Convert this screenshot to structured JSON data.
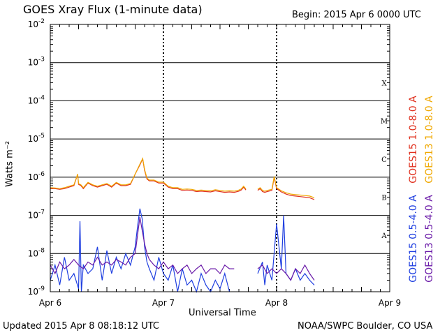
{
  "header": {
    "title": "GOES Xray Flux (1-minute data)",
    "begin": "Begin:  2015 Apr 6 0000 UTC"
  },
  "footer": {
    "updated": "Updated 2015 Apr  8 08:18:12 UTC",
    "credit": "NOAA/SWPC Boulder, CO USA"
  },
  "colors": {
    "goes15_long": "#e0301e",
    "goes13_long": "#f0a800",
    "goes15_short": "#1f3fe0",
    "goes13_short": "#6a1aa8"
  },
  "chart_data": {
    "type": "line",
    "title": "GOES Xray Flux (1-minute data)",
    "xlabel": "Universal Time",
    "ylabel": "Watts m⁻²",
    "yscale": "log",
    "ylim": [
      1e-09,
      0.01
    ],
    "xlim": [
      0,
      72
    ],
    "x_unit": "hours since 2015 Apr 6 0000 UTC",
    "x_ticks": [
      {
        "x": 0,
        "label": "Apr 6"
      },
      {
        "x": 24,
        "label": "Apr 7"
      },
      {
        "x": 48,
        "label": "Apr 8"
      },
      {
        "x": 72,
        "label": "Apr 9"
      }
    ],
    "y_ticks": [
      {
        "value": 1e-09,
        "label": "10",
        "exp": "-9"
      },
      {
        "value": 1e-08,
        "label": "10",
        "exp": "-8"
      },
      {
        "value": 1e-07,
        "label": "10",
        "exp": "-7"
      },
      {
        "value": 1e-06,
        "label": "10",
        "exp": "-6"
      },
      {
        "value": 1e-05,
        "label": "10",
        "exp": "-5"
      },
      {
        "value": 0.0001,
        "label": "10",
        "exp": "-4"
      },
      {
        "value": 0.001,
        "label": "10",
        "exp": "-3"
      },
      {
        "value": 0.01,
        "label": "10",
        "exp": "-2"
      }
    ],
    "flare_classes": [
      {
        "label": "A",
        "value": 3e-08
      },
      {
        "label": "B",
        "value": 3e-07
      },
      {
        "label": "C",
        "value": 3e-06
      },
      {
        "label": "M",
        "value": 3e-05
      },
      {
        "label": "X",
        "value": 0.0003
      }
    ],
    "grid": true,
    "legend_position": "right",
    "series": [
      {
        "name": "GOES15 1.0-8.0 A",
        "color": "#e0301e",
        "x": [
          0,
          1,
          2,
          3,
          4,
          5,
          5.8,
          6,
          6.5,
          7,
          8,
          9,
          10,
          11,
          12,
          13,
          14,
          15,
          16,
          17,
          18,
          19,
          19.6,
          20,
          20.5,
          21,
          22,
          23,
          24,
          25,
          26,
          27,
          28,
          29,
          30,
          31,
          32,
          33,
          34,
          35,
          36,
          37,
          38,
          39,
          40,
          40.5,
          41,
          41.5,
          42,
          44,
          44.5,
          45,
          45.5,
          46,
          47,
          47.5,
          48,
          49,
          50,
          51,
          52,
          53,
          54,
          55,
          56
        ],
        "y": [
          5e-07,
          5e-07,
          4.8e-07,
          5e-07,
          5.5e-07,
          6e-07,
          1.2e-06,
          6.5e-07,
          6e-07,
          5e-07,
          7e-07,
          6e-07,
          5.5e-07,
          6e-07,
          6.5e-07,
          5.5e-07,
          7e-07,
          6e-07,
          6e-07,
          6.5e-07,
          1.2e-06,
          2.1e-06,
          3e-06,
          1.5e-06,
          9e-07,
          8e-07,
          8e-07,
          7e-07,
          7e-07,
          5.5e-07,
          5e-07,
          5e-07,
          4.5e-07,
          4.6e-07,
          4.5e-07,
          4.2e-07,
          4.3e-07,
          4.2e-07,
          4.1e-07,
          4.4e-07,
          4.2e-07,
          4e-07,
          4.1e-07,
          4e-07,
          4.3e-07,
          4.6e-07,
          5.5e-07,
          4.6e-07,
          null,
          4.5e-07,
          5e-07,
          4.2e-07,
          4e-07,
          4.2e-07,
          4.5e-07,
          1e-06,
          5e-07,
          4.1e-07,
          3.6e-07,
          3.3e-07,
          3.2e-07,
          3.1e-07,
          3e-07,
          2.9e-07,
          2.6e-07
        ]
      },
      {
        "name": "GOES13 1.0-8.0 A",
        "color": "#f0a800",
        "x": [
          0,
          1,
          2,
          3,
          4,
          5,
          5.8,
          6,
          6.5,
          7,
          8,
          9,
          10,
          11,
          12,
          13,
          14,
          15,
          16,
          17,
          18,
          19,
          19.6,
          20,
          20.5,
          21,
          22,
          23,
          24,
          25,
          26,
          27,
          28,
          29,
          30,
          31,
          32,
          33,
          34,
          35,
          36,
          37,
          38,
          39,
          40,
          40.5,
          41,
          41.5,
          42,
          44,
          44.5,
          45,
          45.5,
          46,
          47,
          47.5,
          48,
          49,
          50,
          51,
          52,
          53,
          54,
          55,
          56
        ],
        "y": [
          5.3e-07,
          5.2e-07,
          5e-07,
          5.3e-07,
          5.8e-07,
          6.3e-07,
          1.2e-06,
          6.8e-07,
          6.3e-07,
          5.3e-07,
          7.3e-07,
          6.3e-07,
          5.8e-07,
          6.3e-07,
          6.8e-07,
          5.8e-07,
          7.3e-07,
          6.3e-07,
          6.3e-07,
          6.8e-07,
          1.2e-06,
          2.2e-06,
          3.1e-06,
          1.6e-06,
          9.5e-07,
          8.4e-07,
          8.4e-07,
          7.4e-07,
          7.4e-07,
          5.8e-07,
          5.3e-07,
          5.3e-07,
          4.8e-07,
          4.9e-07,
          4.8e-07,
          4.5e-07,
          4.6e-07,
          4.5e-07,
          4.4e-07,
          4.7e-07,
          4.5e-07,
          4.3e-07,
          4.4e-07,
          4.3e-07,
          4.6e-07,
          4.9e-07,
          5.8e-07,
          4.9e-07,
          null,
          4.8e-07,
          5.3e-07,
          4.5e-07,
          4.3e-07,
          4.5e-07,
          4.8e-07,
          1.05e-06,
          5.3e-07,
          4.4e-07,
          3.9e-07,
          3.6e-07,
          3.5e-07,
          3.4e-07,
          3.3e-07,
          3.2e-07,
          2.9e-07
        ]
      },
      {
        "name": "GOES15 0.5-4.0 A",
        "color": "#1f3fe0",
        "x": [
          0,
          1,
          2,
          3,
          4,
          5,
          6,
          6.3,
          6.6,
          7,
          8,
          9,
          10,
          11,
          12,
          13,
          14,
          15,
          16,
          17,
          18,
          18.5,
          19,
          19.5,
          20,
          20.5,
          21,
          22,
          23,
          24,
          25,
          26,
          27,
          28,
          29,
          30,
          31,
          32,
          33,
          34,
          35,
          36,
          37,
          38,
          39,
          40,
          41,
          42,
          43,
          44,
          45,
          45.5,
          46,
          47,
          48,
          49,
          49.5,
          50,
          51,
          52,
          53,
          54,
          55,
          56
        ],
        "y": [
          2e-09,
          5e-09,
          1.5e-09,
          8e-09,
          2e-09,
          3e-09,
          1.2e-09,
          7e-08,
          1e-09,
          5e-09,
          3e-09,
          4e-09,
          1.5e-08,
          2e-09,
          1.2e-08,
          3e-09,
          8e-09,
          4e-09,
          1e-08,
          5e-09,
          1.5e-08,
          5e-08,
          1.5e-07,
          8e-08,
          1.5e-08,
          6e-09,
          4e-09,
          2e-09,
          8e-09,
          3e-09,
          2e-09,
          5e-09,
          1e-09,
          4e-09,
          1.5e-09,
          2e-09,
          1e-09,
          3e-09,
          1.5e-09,
          1e-09,
          2e-09,
          1.2e-09,
          3e-09,
          1e-09,
          null,
          null,
          null,
          null,
          null,
          3e-09,
          6e-09,
          1.5e-09,
          5e-09,
          2e-09,
          6e-08,
          4e-09,
          1e-07,
          3e-09,
          2e-09,
          4e-09,
          2e-09,
          3e-09,
          2e-09,
          1.5e-09
        ]
      },
      {
        "name": "GOES13 0.5-4.0 A",
        "color": "#6a1aa8",
        "x": [
          0,
          1,
          2,
          3,
          4,
          5,
          6,
          7,
          8,
          9,
          10,
          11,
          12,
          13,
          14,
          15,
          16,
          17,
          18,
          18.5,
          19,
          19.5,
          20,
          20.5,
          21,
          22,
          23,
          24,
          25,
          26,
          27,
          28,
          29,
          30,
          31,
          32,
          33,
          34,
          35,
          36,
          37,
          38,
          39,
          40,
          41,
          42,
          43,
          44,
          45,
          46,
          47,
          48,
          49,
          50,
          51,
          52,
          53,
          54,
          55,
          56
        ],
        "y": [
          5e-09,
          3e-09,
          6e-09,
          4e-09,
          5e-09,
          7e-09,
          5e-09,
          4e-09,
          6e-09,
          5e-09,
          8e-09,
          5e-09,
          6e-09,
          5e-09,
          7e-09,
          6e-09,
          5e-09,
          8e-09,
          1e-08,
          3e-08,
          9e-08,
          4e-08,
          1.8e-08,
          1e-08,
          7e-09,
          5e-09,
          4e-09,
          6e-09,
          4e-09,
          5e-09,
          3e-09,
          4e-09,
          5e-09,
          3e-09,
          4e-09,
          5e-09,
          3e-09,
          4e-09,
          4e-09,
          3e-09,
          5e-09,
          4e-09,
          4e-09,
          null,
          null,
          null,
          null,
          4e-09,
          5e-09,
          3e-09,
          4e-09,
          3e-09,
          4e-09,
          3e-09,
          2e-09,
          4e-09,
          3e-09,
          5e-09,
          3e-09,
          2e-09
        ]
      }
    ]
  }
}
